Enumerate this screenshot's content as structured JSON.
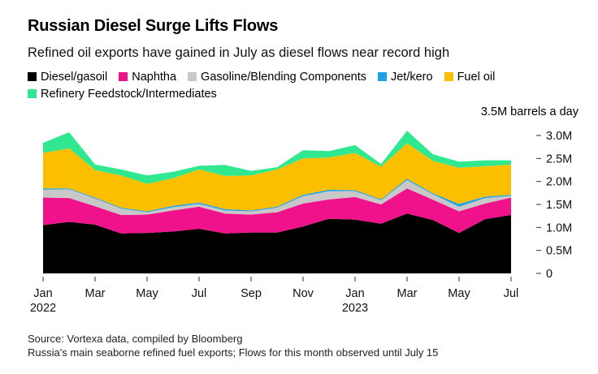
{
  "title": "Russian Diesel Surge Lifts Flows",
  "subtitle": "Refined oil exports have gained in July as diesel flows near record high",
  "unit_label": "3.5M barrels a day",
  "footer": {
    "source": "Source: Vortexa data, compiled by Bloomberg",
    "note": "Russia's main seaborne refined fuel exports; Flows for this month observed until July 15"
  },
  "chart_data": {
    "type": "area",
    "stacked": true,
    "x": [
      "2022-01",
      "2022-02",
      "2022-03",
      "2022-04",
      "2022-05",
      "2022-06",
      "2022-07",
      "2022-08",
      "2022-09",
      "2022-10",
      "2022-11",
      "2022-12",
      "2023-01",
      "2023-02",
      "2023-03",
      "2023-04",
      "2023-05",
      "2023-06",
      "2023-07"
    ],
    "x_tick_labels": [
      {
        "index": 0,
        "label": "Jan",
        "sublabel": "2022"
      },
      {
        "index": 2,
        "label": "Mar",
        "sublabel": ""
      },
      {
        "index": 4,
        "label": "May",
        "sublabel": ""
      },
      {
        "index": 6,
        "label": "Jul",
        "sublabel": ""
      },
      {
        "index": 8,
        "label": "Sep",
        "sublabel": ""
      },
      {
        "index": 10,
        "label": "Nov",
        "sublabel": ""
      },
      {
        "index": 12,
        "label": "Jan",
        "sublabel": "2023"
      },
      {
        "index": 14,
        "label": "Mar",
        "sublabel": ""
      },
      {
        "index": 16,
        "label": "May",
        "sublabel": ""
      },
      {
        "index": 18,
        "label": "Jul",
        "sublabel": ""
      }
    ],
    "y_ticks": [
      {
        "value": 0,
        "label": "0"
      },
      {
        "value": 0.5,
        "label": "0.5M"
      },
      {
        "value": 1.0,
        "label": "1.0M"
      },
      {
        "value": 1.5,
        "label": "1.5M"
      },
      {
        "value": 2.0,
        "label": "2.0M"
      },
      {
        "value": 2.5,
        "label": "2.5M"
      },
      {
        "value": 3.0,
        "label": "3.0M"
      }
    ],
    "ylim": [
      0,
      3.0
    ],
    "ylabel": "M barrels a day",
    "series": [
      {
        "name": "Diesel/gasoil",
        "color": "#000000",
        "values": [
          1.05,
          1.12,
          1.06,
          0.87,
          0.88,
          0.91,
          0.97,
          0.87,
          0.89,
          0.89,
          1.02,
          1.19,
          1.17,
          1.08,
          1.3,
          1.16,
          0.88,
          1.18,
          1.27
        ]
      },
      {
        "name": "Naphtha",
        "color": "#f0128b",
        "values": [
          0.6,
          0.52,
          0.4,
          0.4,
          0.4,
          0.46,
          0.48,
          0.43,
          0.39,
          0.44,
          0.5,
          0.42,
          0.49,
          0.42,
          0.55,
          0.44,
          0.47,
          0.34,
          0.38
        ]
      },
      {
        "name": "Gasoline/Blending Components",
        "color": "#c8c8c8",
        "values": [
          0.17,
          0.19,
          0.17,
          0.14,
          0.05,
          0.07,
          0.06,
          0.07,
          0.07,
          0.1,
          0.16,
          0.18,
          0.13,
          0.09,
          0.18,
          0.12,
          0.1,
          0.12,
          0.04
        ]
      },
      {
        "name": "Jet/kero",
        "color": "#1ea2e6",
        "values": [
          0.03,
          0.02,
          0.02,
          0.02,
          0.02,
          0.03,
          0.03,
          0.03,
          0.02,
          0.02,
          0.03,
          0.03,
          0.02,
          0.02,
          0.03,
          0.02,
          0.06,
          0.03,
          0.02
        ]
      },
      {
        "name": "Fuel oil",
        "color": "#fbbf00",
        "values": [
          0.77,
          0.87,
          0.6,
          0.7,
          0.6,
          0.6,
          0.72,
          0.72,
          0.76,
          0.81,
          0.79,
          0.7,
          0.81,
          0.71,
          0.77,
          0.71,
          0.79,
          0.66,
          0.66
        ]
      },
      {
        "name": "Refinery Feedstock/Intermediates",
        "color": "#30e890",
        "values": [
          0.22,
          0.35,
          0.12,
          0.13,
          0.18,
          0.14,
          0.08,
          0.24,
          0.1,
          0.05,
          0.18,
          0.14,
          0.17,
          0.06,
          0.27,
          0.14,
          0.13,
          0.13,
          0.09
        ]
      }
    ]
  }
}
